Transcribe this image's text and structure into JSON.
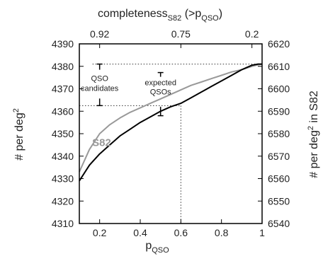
{
  "chart_data": {
    "type": "line",
    "x_axis": {
      "label_main": "p",
      "label_sub": "QSO",
      "range": [
        0.1,
        1.0
      ],
      "ticks": [
        0.2,
        0.4,
        0.6,
        0.8,
        1
      ],
      "tick_labels": [
        "0.2",
        "0.4",
        "0.6",
        "0.8",
        "1"
      ]
    },
    "y_axis_left": {
      "label_main": "# per deg",
      "label_sup": "2",
      "range": [
        4310,
        4390
      ],
      "ticks": [
        4310,
        4320,
        4330,
        4340,
        4350,
        4360,
        4370,
        4380,
        4390
      ],
      "tick_labels": [
        "4310",
        "4320",
        "4330",
        "4340",
        "4350",
        "4360",
        "4370",
        "4380",
        "4390"
      ]
    },
    "y_axis_right": {
      "label_main": "# per deg",
      "label_sup": "2",
      "label_tail": " in S82",
      "range": [
        6540,
        6620
      ],
      "ticks": [
        6540,
        6550,
        6560,
        6570,
        6580,
        6590,
        6600,
        6610,
        6620
      ],
      "tick_labels": [
        "6540",
        "6550",
        "6560",
        "6570",
        "6580",
        "6590",
        "6600",
        "6610",
        "6620"
      ]
    },
    "x_axis_top": {
      "label_main": "completeness",
      "label_sub": "S82",
      "label_tail": " (>p",
      "label_tail_sub": "QSO",
      "label_close": ")",
      "ticks_at_p": [
        0.2,
        0.6,
        0.95
      ],
      "tick_labels": [
        "0.92",
        "0.75",
        "0.2"
      ]
    },
    "series": [
      {
        "name": "S82",
        "color": "#999999",
        "x": [
          0.1,
          0.15,
          0.2,
          0.25,
          0.3,
          0.35,
          0.4,
          0.45,
          0.5,
          0.55,
          0.6,
          0.65,
          0.7,
          0.75,
          0.8,
          0.85,
          0.9,
          0.95,
          0.98,
          1.0
        ],
        "y": [
          4333,
          4343,
          4350,
          4354,
          4357,
          4359.5,
          4361.5,
          4363.5,
          4365.5,
          4367.5,
          4369.5,
          4371.5,
          4373,
          4374.5,
          4376,
          4377.5,
          4378.5,
          4380,
          4380.7,
          4381
        ]
      },
      {
        "name": "",
        "color": "#000000",
        "x": [
          0.1,
          0.15,
          0.2,
          0.25,
          0.3,
          0.35,
          0.4,
          0.45,
          0.5,
          0.55,
          0.6,
          0.65,
          0.7,
          0.75,
          0.8,
          0.85,
          0.9,
          0.95,
          0.98,
          1.0
        ],
        "y": [
          4329,
          4336,
          4341,
          4345,
          4349,
          4352,
          4355,
          4357.5,
          4360,
          4362,
          4363.5,
          4366,
          4368.5,
          4371,
          4373.5,
          4376,
          4378.5,
          4380.5,
          4381,
          4381
        ]
      }
    ],
    "reference_lines": {
      "upper_y": 4381,
      "lower_y": 4362.5,
      "vertical_x": 0.6,
      "left_bar_x": 0.2,
      "mid_bar_x": 0.5
    },
    "annotations": {
      "series_label": "S82",
      "left_line1": "QSO",
      "left_line2": "candidates",
      "mid_line1": "expected",
      "mid_line2": "QSOs"
    }
  }
}
